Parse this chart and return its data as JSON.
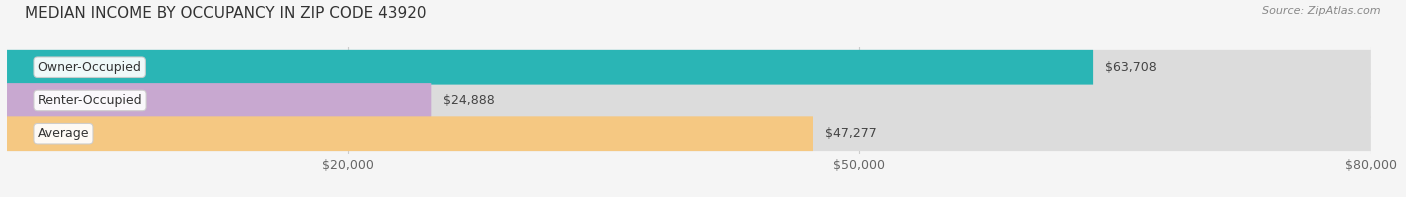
{
  "title": "MEDIAN INCOME BY OCCUPANCY IN ZIP CODE 43920",
  "source": "Source: ZipAtlas.com",
  "categories": [
    "Owner-Occupied",
    "Renter-Occupied",
    "Average"
  ],
  "values": [
    63708,
    24888,
    47277
  ],
  "labels": [
    "$63,708",
    "$24,888",
    "$47,277"
  ],
  "bar_colors": [
    "#2ab5b5",
    "#c8a8d0",
    "#f5c882"
  ],
  "bar_bg_color": "#dcdcdc",
  "xlim": [
    0,
    80000
  ],
  "xtick_vals": [
    20000,
    50000,
    80000
  ],
  "xtick_labels": [
    "$20,000",
    "$50,000",
    "$80,000"
  ],
  "title_fontsize": 11,
  "source_fontsize": 8,
  "label_fontsize": 9,
  "bar_height": 0.55,
  "background_color": "#f5f5f5"
}
